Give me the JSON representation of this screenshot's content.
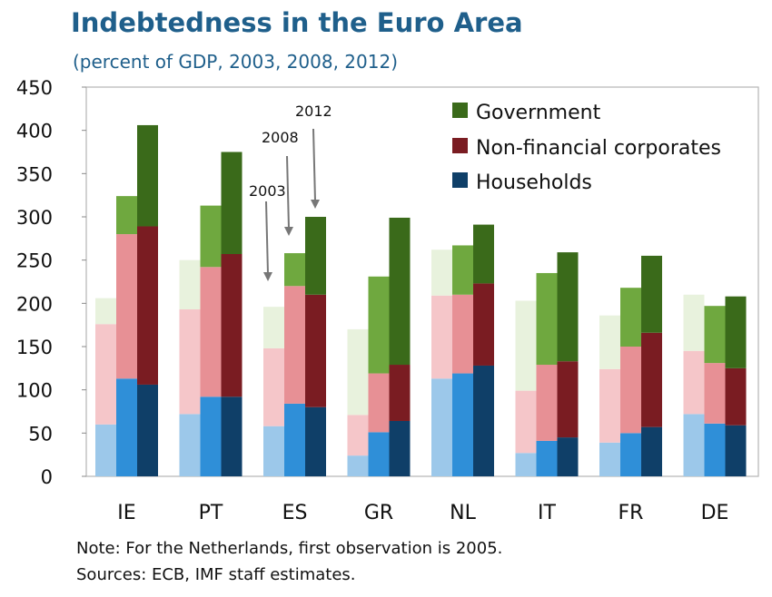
{
  "title": "Indebtedness in the Euro Area",
  "subtitle": "(percent of GDP, 2003, 2008, 2012)",
  "notes": {
    "note": "Note: For the Netherlands, first observation is 2005.",
    "sources": "Sources: ECB, IMF staff estimates."
  },
  "annotations": {
    "y2003": "2003",
    "y2008": "2008",
    "y2012": "2012"
  },
  "colors": {
    "households": [
      "#9cc8ea",
      "#2f8fd8",
      "#0f3f68"
    ],
    "corporates": [
      "#f5c6c9",
      "#e79095",
      "#7a1c22"
    ],
    "government": [
      "#e8f2dd",
      "#6fa83f",
      "#3a6a1a"
    ]
  },
  "chart_data": {
    "type": "bar",
    "stacked": true,
    "categories": [
      "IE",
      "PT",
      "ES",
      "GR",
      "NL",
      "IT",
      "FR",
      "DE"
    ],
    "years": [
      "2003",
      "2008",
      "2012"
    ],
    "ylim": [
      0,
      450
    ],
    "yticks": [
      0,
      50,
      100,
      150,
      200,
      250,
      300,
      350,
      400,
      450
    ],
    "legend_position": "top-right",
    "legend": [
      "Government",
      "Non-financial corporates",
      "Households"
    ],
    "series": [
      {
        "name": "Households",
        "values": [
          [
            60,
            113,
            106
          ],
          [
            72,
            92,
            92
          ],
          [
            58,
            84,
            80
          ],
          [
            24,
            51,
            64
          ],
          [
            113,
            119,
            128
          ],
          [
            27,
            41,
            45
          ],
          [
            39,
            50,
            57
          ],
          [
            72,
            61,
            59
          ]
        ]
      },
      {
        "name": "Non-financial corporates",
        "values": [
          [
            116,
            167,
            183
          ],
          [
            121,
            150,
            165
          ],
          [
            90,
            136,
            130
          ],
          [
            47,
            68,
            65
          ],
          [
            96,
            91,
            95
          ],
          [
            72,
            88,
            88
          ],
          [
            85,
            100,
            109
          ],
          [
            73,
            70,
            66
          ]
        ]
      },
      {
        "name": "Government",
        "values": [
          [
            30,
            44,
            117
          ],
          [
            57,
            71,
            118
          ],
          [
            48,
            38,
            90
          ],
          [
            99,
            112,
            170
          ],
          [
            53,
            57,
            68
          ],
          [
            104,
            106,
            126
          ],
          [
            62,
            68,
            89
          ],
          [
            65,
            66,
            83
          ]
        ]
      }
    ]
  }
}
